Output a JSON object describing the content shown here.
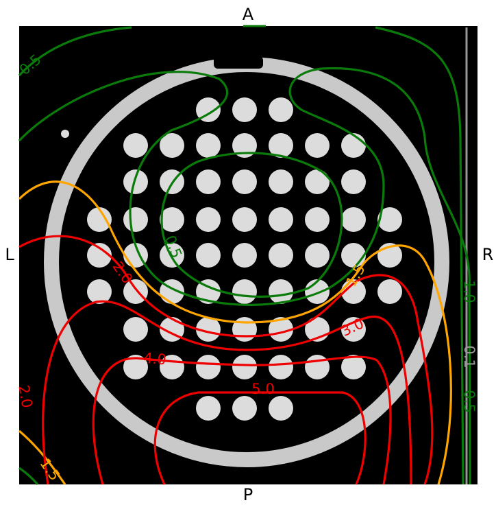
{
  "orientation": {
    "top": "A",
    "bottom": "P",
    "left": "L",
    "right": "R"
  },
  "contour_labels": [
    "0.5",
    "0.5",
    "1.0",
    "0.1",
    "0.5",
    "1.5",
    "1.5",
    "2.0",
    "2.0",
    "3.0",
    "4.0",
    "5.0"
  ]
}
